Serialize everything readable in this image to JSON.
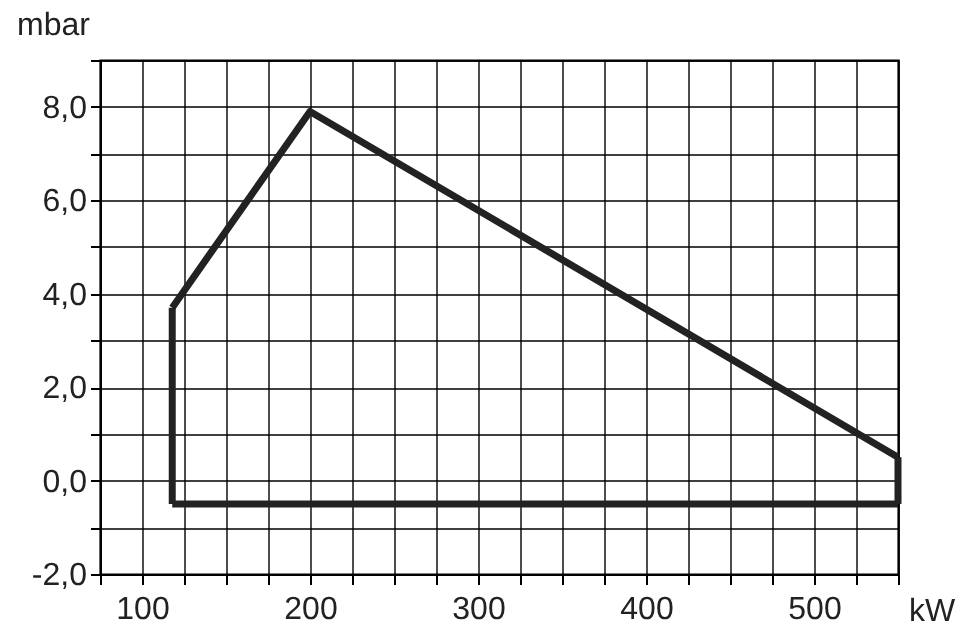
{
  "chart_data": {
    "type": "line",
    "xlabel": "kW",
    "ylabel": "mbar",
    "series": [
      {
        "color": "#222222",
        "x": [
          118,
          118
        ],
        "values": [
          -0.5,
          3.7
        ]
      },
      {
        "color": "#222222",
        "x": [
          118,
          200,
          550
        ],
        "values": [
          3.7,
          7.9,
          0.5
        ]
      },
      {
        "color": "#222222",
        "x": [
          550,
          550
        ],
        "values": [
          0.5,
          -0.5
        ]
      },
      {
        "color": "#222222",
        "x": [
          118,
          550
        ],
        "values": [
          -0.5,
          -0.5
        ]
      }
    ],
    "xlim": [
      75,
      550
    ],
    "xticks": [
      {
        "value": 75,
        "label": null
      },
      100,
      {
        "value": 125,
        "label": null
      },
      {
        "value": 150,
        "label": null
      },
      {
        "value": 175,
        "label": null
      },
      200,
      {
        "value": 225,
        "label": null
      },
      {
        "value": 250,
        "label": null
      },
      {
        "value": 275,
        "label": null
      },
      300,
      {
        "value": 325,
        "label": null
      },
      {
        "value": 350,
        "label": null
      },
      {
        "value": 375,
        "label": null
      },
      400,
      {
        "value": 425,
        "label": null
      },
      {
        "value": 450,
        "label": null
      },
      {
        "value": 475,
        "label": null
      },
      500,
      {
        "value": 525,
        "label": null
      },
      {
        "value": 550,
        "label": null
      }
    ],
    "ylim": [
      -2,
      9
    ],
    "yticks": [
      {
        "value": -2,
        "label": "-2,0"
      },
      {
        "value": -1,
        "label": null
      },
      {
        "value": 0,
        "label": "0,0"
      },
      {
        "value": 1,
        "label": null
      },
      {
        "value": 2,
        "label": "2,0"
      },
      {
        "value": 3,
        "label": null
      },
      {
        "value": 4,
        "label": "4,0"
      },
      {
        "value": 5,
        "label": null
      },
      {
        "value": 6,
        "label": "6,0"
      },
      {
        "value": 7,
        "label": null
      },
      {
        "value": 8,
        "label": "8,0"
      },
      {
        "value": 9,
        "label": null
      }
    ],
    "grid": true,
    "line_style": "solid",
    "marker": "none"
  }
}
